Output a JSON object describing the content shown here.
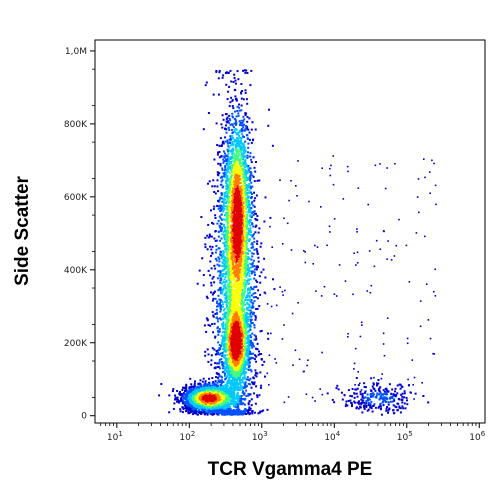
{
  "chart_data": {
    "type": "scatter",
    "subtype": "flow-cytometry-density-dot-plot",
    "title": "",
    "xlabel": "TCR Vgamma4 PE",
    "ylabel": "Side Scatter",
    "x_scale": "log",
    "xlim": [
      5,
      1200000
    ],
    "ylim": [
      -20000,
      1030000
    ],
    "x_ticks": [
      {
        "value": 10,
        "base": "10",
        "exp": "1"
      },
      {
        "value": 100,
        "base": "10",
        "exp": "2"
      },
      {
        "value": 1000,
        "base": "10",
        "exp": "3"
      },
      {
        "value": 10000,
        "base": "10",
        "exp": "4"
      },
      {
        "value": 100000,
        "base": "10",
        "exp": "5"
      },
      {
        "value": 1000000,
        "base": "10",
        "exp": "6"
      }
    ],
    "y_ticks": [
      {
        "value": 0,
        "label": "0"
      },
      {
        "value": 200000,
        "label": "200K"
      },
      {
        "value": 400000,
        "label": "400K"
      },
      {
        "value": 600000,
        "label": "600K"
      },
      {
        "value": 800000,
        "label": "800K"
      },
      {
        "value": 1000000,
        "label": "1,0M"
      }
    ],
    "grid": false,
    "color_scale": [
      "#0000c8",
      "#0050ff",
      "#00c8ff",
      "#40ff80",
      "#ffff00",
      "#ff8000",
      "#e00000"
    ],
    "populations": [
      {
        "x_center": 180,
        "y_center": 50000,
        "log_x_sd": 0.17,
        "y_sd": 18000,
        "weight": 1.0
      },
      {
        "x_center": 430,
        "y_center": 200000,
        "log_x_sd": 0.08,
        "y_sd": 50000,
        "weight": 0.85
      },
      {
        "x_center": 450,
        "y_center": 560000,
        "log_x_sd": 0.09,
        "y_sd": 130000,
        "weight": 0.75
      },
      {
        "x_center": 420,
        "y_center": 350000,
        "log_x_sd": 0.16,
        "y_sd": 230000,
        "weight": 0.45
      },
      {
        "x_center": 40000,
        "y_center": 50000,
        "log_x_sd": 0.25,
        "y_sd": 20000,
        "weight": 0.15
      }
    ]
  }
}
